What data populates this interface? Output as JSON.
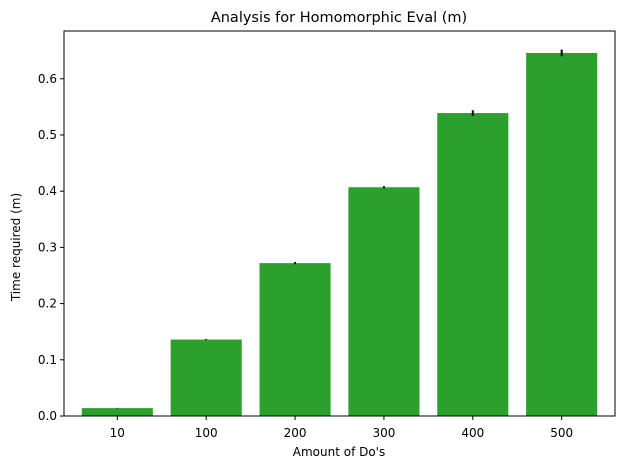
{
  "chart_data": {
    "type": "bar",
    "title": "Analysis for Homomorphic Eval (m)",
    "xlabel": "Amount of Do's",
    "ylabel": "Time required (m)",
    "categories": [
      "10",
      "100",
      "200",
      "300",
      "400",
      "500"
    ],
    "values": [
      0.014,
      0.136,
      0.272,
      0.407,
      0.539,
      0.646
    ],
    "errors": [
      0.0005,
      0.0008,
      0.002,
      0.002,
      0.005,
      0.006
    ],
    "ylim": [
      0,
      0.685
    ],
    "yticks": [
      0.0,
      0.1,
      0.2,
      0.3,
      0.4,
      0.5,
      0.6
    ],
    "ytick_labels": [
      "0.0",
      "0.1",
      "0.2",
      "0.3",
      "0.4",
      "0.5",
      "0.6"
    ],
    "bar_color": "#2ca02c",
    "grid": false,
    "legend": "none"
  }
}
